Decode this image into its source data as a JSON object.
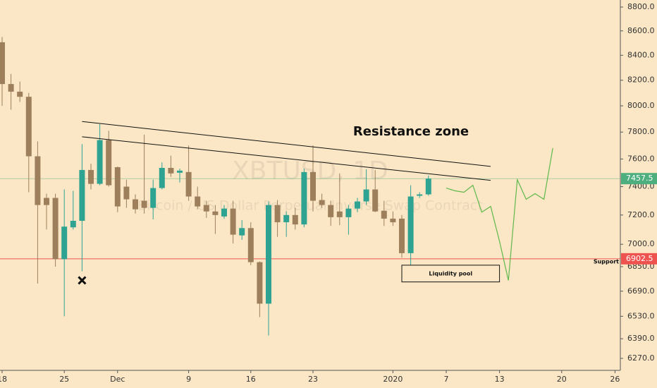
{
  "chart_data": {
    "type": "candlestick",
    "title": "XBTUSD, 1D",
    "subtitle": "Bitcoin / US Dollar Perpetual Inverse Swap Contract",
    "categories": [
      "18",
      null,
      null,
      null,
      null,
      null,
      null,
      "25",
      null,
      null,
      null,
      null,
      null,
      "Dec",
      null,
      null,
      null,
      null,
      null,
      null,
      null,
      "9",
      null,
      null,
      null,
      null,
      null,
      null,
      "16",
      null,
      null,
      null,
      null,
      null,
      null,
      "23",
      null,
      null,
      null,
      null,
      null,
      null,
      null,
      null,
      "2020",
      null,
      null,
      null,
      null,
      null,
      "7",
      null,
      null,
      null,
      null,
      null,
      "13",
      null,
      null,
      null,
      null,
      null,
      null,
      "20",
      null,
      null,
      null,
      null,
      null,
      "26"
    ],
    "open": [
      8506,
      8170,
      8110,
      8070,
      7620,
      7320,
      7320,
      6900,
      7115,
      7160,
      7520,
      7420,
      7740,
      7540,
      7400,
      7310,
      7300,
      7250,
      7390,
      7535,
      7500,
      7505,
      7330,
      7270,
      7225,
      7190,
      7245,
      7060,
      7110,
      6880,
      6610,
      7270,
      7150,
      7200,
      7135,
      7505,
      7305,
      7270,
      7225,
      7185,
      7245,
      7295,
      7380,
      7230,
      7175,
      7175,
      6940,
      7335,
      7345,
      null,
      null,
      null,
      null,
      null,
      null,
      null,
      null,
      null,
      null,
      null,
      null,
      null,
      null,
      null,
      null,
      null,
      null,
      null,
      null,
      null
    ],
    "high": [
      8550,
      8250,
      8190,
      8100,
      7730,
      7350,
      7350,
      7380,
      7370,
      7710,
      7565,
      7860,
      7810,
      7545,
      7450,
      7345,
      7780,
      7450,
      7575,
      7625,
      7530,
      7700,
      7400,
      7300,
      7270,
      7270,
      7300,
      7165,
      7150,
      6885,
      7295,
      7305,
      7225,
      7250,
      7530,
      7700,
      7350,
      7300,
      7495,
      7270,
      7320,
      7525,
      7520,
      7300,
      7225,
      7200,
      7410,
      7360,
      7480,
      null,
      null,
      null,
      null,
      null,
      null,
      null,
      null,
      null,
      null,
      null,
      null,
      null,
      null,
      null,
      null,
      null,
      null,
      null,
      null,
      null
    ],
    "low": [
      8000,
      7970,
      8030,
      7360,
      6740,
      7100,
      6850,
      6530,
      7100,
      6820,
      7380,
      7410,
      7400,
      7220,
      7250,
      7210,
      7210,
      7170,
      7380,
      7470,
      7430,
      7300,
      7240,
      7180,
      7070,
      7175,
      7005,
      7030,
      6860,
      6525,
      6410,
      7050,
      7050,
      7100,
      7115,
      7225,
      7250,
      7125,
      7130,
      7065,
      7220,
      7270,
      7220,
      7125,
      7125,
      6910,
      6860,
      7320,
      7335,
      null,
      null,
      null,
      null,
      null,
      null,
      null,
      null,
      null,
      null,
      null,
      null,
      null,
      null,
      null,
      null,
      null,
      null,
      null,
      null,
      null
    ],
    "close": [
      8170,
      8110,
      8070,
      7620,
      7270,
      7270,
      6900,
      7120,
      7160,
      7520,
      7420,
      7740,
      7410,
      7260,
      7310,
      7240,
      7250,
      7390,
      7535,
      7495,
      7515,
      7330,
      7260,
      7225,
      7200,
      7245,
      7065,
      7110,
      6880,
      6610,
      7270,
      7150,
      7200,
      7135,
      7505,
      7300,
      7270,
      7185,
      7185,
      7245,
      7295,
      7380,
      7225,
      7175,
      7150,
      6940,
      7330,
      7345,
      7457.5,
      null,
      null,
      null,
      null,
      null,
      null,
      null,
      null,
      null,
      null,
      null,
      null,
      null,
      null,
      null,
      null,
      null,
      null,
      null,
      null,
      null
    ],
    "projection": [
      null,
      null,
      null,
      null,
      null,
      null,
      null,
      null,
      null,
      null,
      null,
      null,
      null,
      null,
      null,
      null,
      null,
      null,
      null,
      null,
      null,
      null,
      null,
      null,
      null,
      null,
      null,
      null,
      null,
      null,
      null,
      null,
      null,
      null,
      null,
      null,
      null,
      null,
      null,
      null,
      null,
      null,
      null,
      null,
      null,
      null,
      null,
      null,
      null,
      null,
      7390,
      7370,
      7360,
      7410,
      7220,
      7260,
      7020,
      6760,
      7450,
      7310,
      7350,
      7310,
      7680,
      null,
      null,
      null,
      null,
      null,
      null,
      null
    ],
    "trendlines": [
      {
        "x": [
          9,
          55
        ],
        "y": [
          7880,
          7546
        ]
      },
      {
        "x": [
          9,
          55
        ],
        "y": [
          7765,
          7445
        ]
      }
    ],
    "resistance_label": "Resistance zone",
    "liquidity_pool": {
      "label": "Liquidity pool",
      "x": [
        45,
        56
      ],
      "y": [
        6860,
        6750
      ]
    },
    "marker": {
      "x": 9,
      "y": 6760
    },
    "support": {
      "label": "Support",
      "value": 6902.5
    },
    "last_price": 7457.5,
    "log_scale": true,
    "ylim": [
      6198,
      8860
    ],
    "yticks": [
      {
        "value": 8800,
        "label": "8800.0"
      },
      {
        "value": 8600,
        "label": "8600.0"
      },
      {
        "value": 8400,
        "label": "8400.0"
      },
      {
        "value": 8200,
        "label": "8200.0"
      },
      {
        "value": 8000,
        "label": "8000.0"
      },
      {
        "value": 7800,
        "label": "7800.0"
      },
      {
        "value": 7600,
        "label": "7600.0"
      },
      {
        "value": 7400,
        "label": "7400.0"
      },
      {
        "value": 7200,
        "label": "7200.0"
      },
      {
        "value": 7000,
        "label": "7000.0"
      },
      {
        "value": 6850,
        "label": "6850.0"
      },
      {
        "value": 6690,
        "label": "6690.0"
      },
      {
        "value": 6530,
        "label": "6530.0"
      },
      {
        "value": 6390,
        "label": "6390.0"
      },
      {
        "value": 6270,
        "label": "6270.0"
      }
    ],
    "bull_color": "#2ea391",
    "bear_color": "#9d7f5b",
    "projection_color": "#5fb84a",
    "support_color": "#ef5350",
    "last_price_color": "#4caf7d",
    "line_color": "#111111",
    "grid": false
  }
}
